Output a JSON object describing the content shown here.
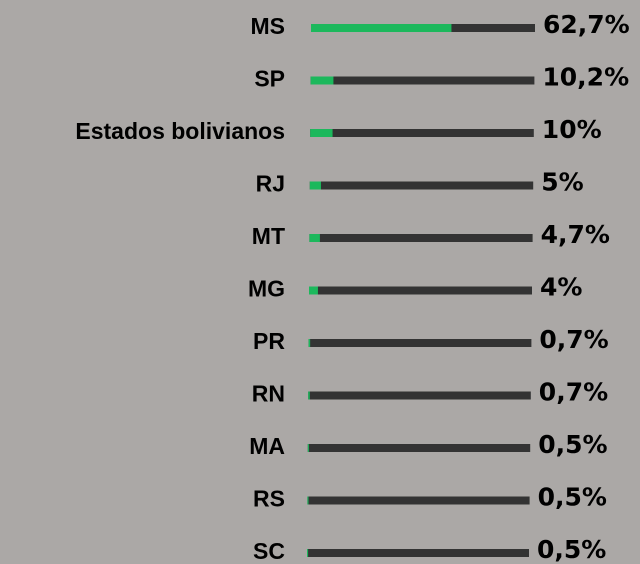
{
  "chart_data": {
    "type": "bar",
    "categories": [
      "MS",
      "SP",
      "Estados bolivianos",
      "RJ",
      "MT",
      "MG",
      "PR",
      "RN",
      "MA",
      "RS",
      "SC"
    ],
    "values": [
      62.7,
      10.2,
      10,
      5,
      4.7,
      4,
      0.7,
      0.7,
      0.5,
      0.5,
      0.5
    ],
    "value_labels": [
      "62,7%",
      "10,2%",
      "10%",
      "5%",
      "4,7%",
      "4%",
      "0,7%",
      "0,7%",
      "0,5%",
      "0,5%",
      "0,5%"
    ],
    "color": "#1cb85c",
    "track_color": "#333333",
    "xlim": [
      0,
      100
    ]
  }
}
